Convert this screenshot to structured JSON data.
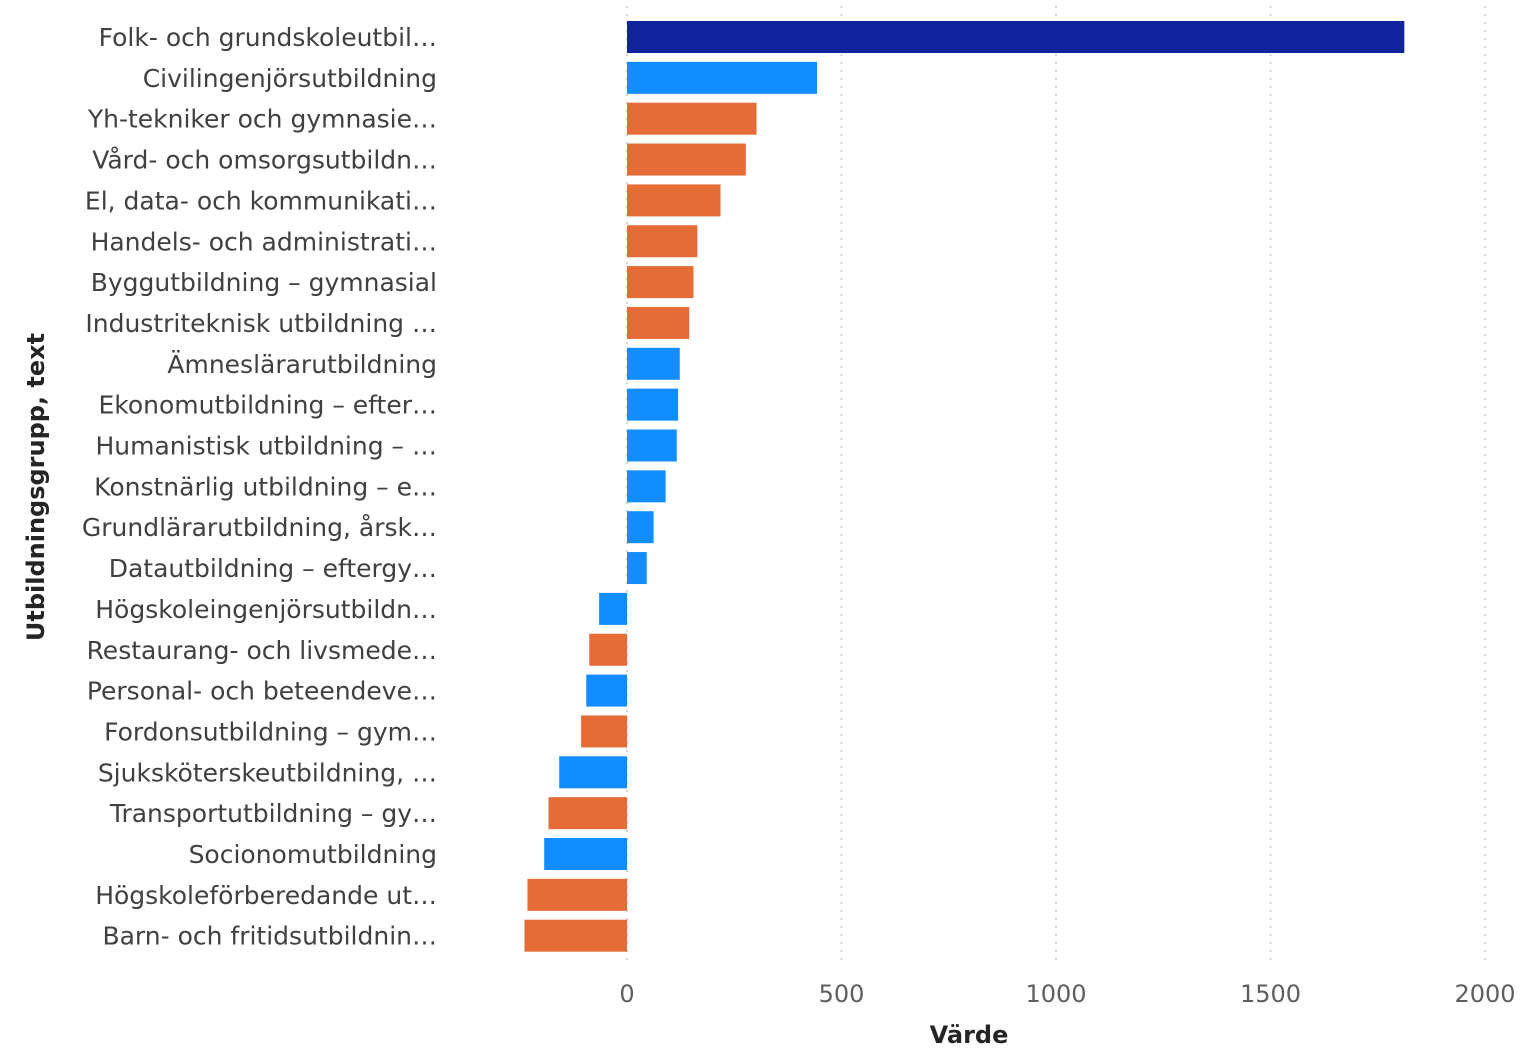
{
  "chart_data": {
    "type": "bar",
    "orientation": "horizontal",
    "xlabel": "Värde",
    "ylabel": "Utbildningsgrupp, text",
    "xlim": [
      -240,
      2000
    ],
    "xticks": [
      0,
      500,
      1000,
      1500,
      2000
    ],
    "grid": "vertical dotted",
    "colors": {
      "highlight": "#12239E",
      "blue": "#118DFF",
      "orange": "#E66C37"
    },
    "categories": [
      "Folk- och grundskoleutbil…",
      "Civilingenjörsutbildning",
      "Yh-tekniker och gymnasie…",
      "Vård- och omsorgsutbildn…",
      "El, data- och kommunikati…",
      "Handels- och administrati…",
      "Byggutbildning – gymnasial",
      "Industriteknisk utbildning …",
      "Ämneslärarutbildning",
      "Ekonomutbildning – efter…",
      "Humanistisk utbildning – …",
      "Konstnärlig utbildning – e…",
      "Grundlärarutbildning, årsk…",
      "Datautbildning – eftergy…",
      "Högskoleingenjörsutbildn…",
      "Restaurang- och livsmede…",
      "Personal- och beteendeve…",
      "Fordonsutbildning – gym…",
      "Sjuksköterskeutbildning, …",
      "Transportutbildning – gy…",
      "Socionomutbildning",
      "Högskoleförberedande ut…",
      "Barn- och fritidsutbildnin…"
    ],
    "values": [
      1812,
      443,
      302,
      277,
      218,
      164,
      155,
      145,
      123,
      119,
      116,
      90,
      62,
      46,
      -65,
      -88,
      -95,
      -107,
      -158,
      -183,
      -193,
      -232,
      -239
    ],
    "bar_colors": [
      "highlight",
      "blue",
      "orange",
      "orange",
      "orange",
      "orange",
      "orange",
      "orange",
      "blue",
      "blue",
      "blue",
      "blue",
      "blue",
      "blue",
      "blue",
      "orange",
      "blue",
      "orange",
      "blue",
      "orange",
      "blue",
      "orange",
      "orange"
    ]
  }
}
